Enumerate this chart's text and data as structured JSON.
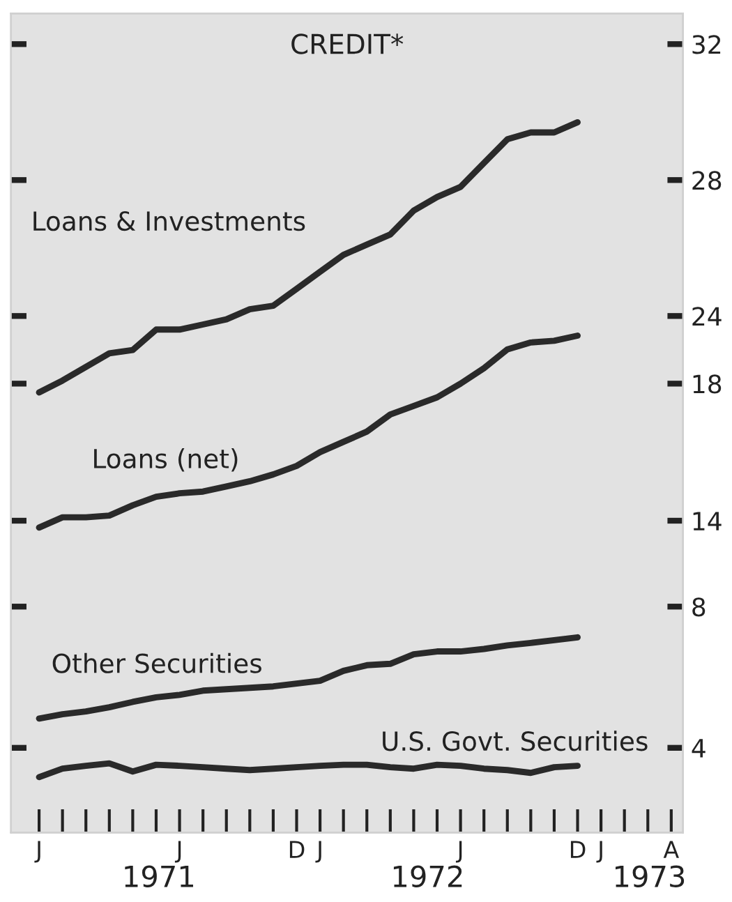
{
  "chart_data": {
    "type": "line",
    "title": "CREDIT*",
    "categories": [
      "J",
      null,
      null,
      null,
      null,
      null,
      "J",
      null,
      null,
      null,
      null,
      "D",
      "J",
      null,
      null,
      null,
      null,
      null,
      "J",
      null,
      null,
      null,
      null,
      "D",
      "J",
      null,
      null,
      "A"
    ],
    "series": [
      {
        "name": "Loans & Investments",
        "color": "#2a2a2a",
        "axis": "y3",
        "values": [
          21.75,
          22.1,
          22.5,
          22.9,
          23.0,
          23.6,
          23.6,
          23.75,
          23.9,
          24.2,
          24.3,
          24.8,
          25.3,
          25.8,
          26.1,
          26.4,
          27.1,
          27.5,
          27.8,
          28.5,
          29.2,
          29.4,
          29.4,
          29.7,
          null,
          null,
          null,
          null
        ]
      },
      {
        "name": "Loans (net)",
        "color": "#2a2a2a",
        "axis": "y2",
        "values": [
          13.8,
          14.1,
          14.1,
          14.15,
          14.45,
          14.7,
          14.8,
          14.85,
          15.0,
          15.15,
          15.35,
          15.6,
          16.0,
          16.3,
          16.6,
          17.1,
          17.35,
          17.6,
          18.0,
          18.45,
          19.0,
          19.2,
          19.25,
          19.4,
          null,
          null,
          null,
          null
        ]
      },
      {
        "name": "Other Securities",
        "color": "#2a2a2a",
        "axis": "y",
        "values": [
          4.83,
          4.95,
          5.03,
          5.15,
          5.3,
          5.43,
          5.5,
          5.62,
          5.66,
          5.7,
          5.74,
          5.82,
          5.9,
          6.18,
          6.34,
          6.38,
          6.65,
          6.73,
          6.73,
          6.8,
          6.9,
          6.97,
          7.05,
          7.13,
          null,
          null,
          null,
          null
        ]
      },
      {
        "name": "U.S. Govt. Securities",
        "color": "#2a2a2a",
        "axis": "y",
        "values": [
          3.17,
          3.41,
          3.49,
          3.56,
          3.33,
          3.52,
          3.49,
          3.45,
          3.41,
          3.37,
          3.41,
          3.45,
          3.49,
          3.52,
          3.52,
          3.45,
          3.41,
          3.52,
          3.49,
          3.41,
          3.37,
          3.29,
          3.45,
          3.49,
          null,
          null,
          null,
          null
        ]
      }
    ],
    "ylim": [
      1.6,
      24.8
    ],
    "yticks": [
      4,
      8
    ],
    "y2lim": [
      4.9,
      28.8
    ],
    "y2ticks": [
      14,
      18
    ],
    "y3lim": [
      8.8,
      32.9
    ],
    "y3ticks": [
      24,
      28,
      32
    ],
    "annotations": [
      "1971",
      "1972",
      "1973"
    ],
    "grid": false,
    "marker": "none",
    "line_style": "solid"
  }
}
